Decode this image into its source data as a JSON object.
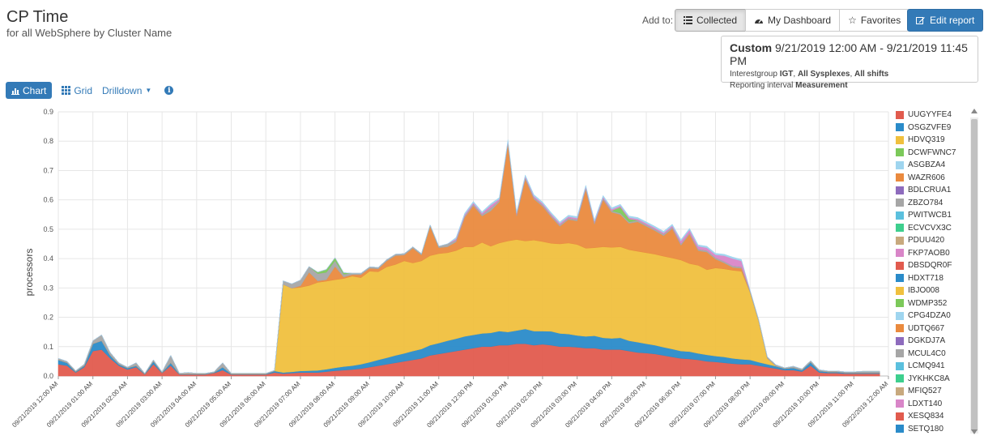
{
  "header": {
    "title": "CP Time",
    "subtitle": "for all WebSphere by Cluster Name"
  },
  "toolbar": {
    "add_to_label": "Add to:",
    "collected_label": "Collected",
    "dashboard_label": "My Dashboard",
    "favorites_label": "Favorites",
    "edit_label": "Edit report"
  },
  "info": {
    "range_kind": "Custom",
    "range_value": "9/21/2019 12:00 AM - 9/21/2019 11:45 PM",
    "interest_prefix": "Interestgroup",
    "interest_group": "IGT",
    "sysplexes": "All Sysplexes",
    "shifts": "All shifts",
    "interval_prefix": "Reporting interval",
    "interval": "Measurement"
  },
  "tabs": {
    "chart": "Chart",
    "grid": "Grid",
    "drilldown": "Drilldown"
  },
  "colors": {
    "accent": "#337ab7",
    "red": "#e15b4e",
    "blue": "#2a8bc9",
    "yellow": "#f0c03e",
    "orange": "#ea8a3e"
  },
  "chart_data": {
    "type": "area",
    "stacked": true,
    "ylabel": "processors",
    "ylim": [
      0,
      0.9
    ],
    "yticks": [
      0.0,
      0.1,
      0.2,
      0.3,
      0.4,
      0.5,
      0.6,
      0.7,
      0.8,
      0.9
    ],
    "grid": true,
    "legend_position": "right",
    "xtick_labels": [
      "09/21/2019 12:00 AM",
      "09/21/2019 01:00 AM",
      "09/21/2019 02:00 AM",
      "09/21/2019 03:00 AM",
      "09/21/2019 04:00 AM",
      "09/21/2019 05:00 AM",
      "09/21/2019 06:00 AM",
      "09/21/2019 07:00 AM",
      "09/21/2019 08:00 AM",
      "09/21/2019 09:00 AM",
      "09/21/2019 10:00 AM",
      "09/21/2019 11:00 AM",
      "09/21/2019 12:00 PM",
      "09/21/2019 01:00 PM",
      "09/21/2019 02:00 PM",
      "09/21/2019 03:00 PM",
      "09/21/2019 04:00 PM",
      "09/21/2019 05:00 PM",
      "09/21/2019 06:00 PM",
      "09/21/2019 07:00 PM",
      "09/21/2019 08:00 PM",
      "09/21/2019 09:00 PM",
      "09/21/2019 10:00 PM",
      "09/21/2019 11:00 PM",
      "09/22/2019 12:00 AM"
    ],
    "x_hours": [
      0,
      0.25,
      0.5,
      0.75,
      1,
      1.25,
      1.5,
      1.75,
      2,
      2.25,
      2.5,
      2.75,
      3,
      3.25,
      3.5,
      3.75,
      4,
      4.25,
      4.5,
      4.75,
      5,
      5.25,
      5.5,
      5.75,
      6,
      6.25,
      6.5,
      6.75,
      7,
      7.25,
      7.5,
      7.75,
      8,
      8.25,
      8.5,
      8.75,
      9,
      9.25,
      9.5,
      9.75,
      10,
      10.25,
      10.5,
      10.75,
      11,
      11.25,
      11.5,
      11.75,
      12,
      12.25,
      12.5,
      12.75,
      13,
      13.25,
      13.5,
      13.75,
      14,
      14.25,
      14.5,
      14.75,
      15,
      15.25,
      15.5,
      15.75,
      16,
      16.25,
      16.5,
      16.75,
      17,
      17.25,
      17.5,
      17.75,
      18,
      18.25,
      18.5,
      18.75,
      19,
      19.25,
      19.5,
      19.75,
      20,
      20.25,
      20.5,
      20.75,
      21,
      21.25,
      21.5,
      21.75,
      22,
      22.25,
      22.5,
      22.75,
      23,
      23.25,
      23.5,
      23.75
    ],
    "series": [
      {
        "name": "XESQ834",
        "color": "#e15b4e",
        "values": [
          0.04,
          0.035,
          0.012,
          0.03,
          0.085,
          0.09,
          0.06,
          0.035,
          0.022,
          0.03,
          0.005,
          0.04,
          0.01,
          0.035,
          0.005,
          0.005,
          0.005,
          0.005,
          0.01,
          0.02,
          0.005,
          0.005,
          0.005,
          0.005,
          0.005,
          0.012,
          0.008,
          0.01,
          0.012,
          0.012,
          0.012,
          0.015,
          0.018,
          0.02,
          0.022,
          0.025,
          0.03,
          0.035,
          0.04,
          0.045,
          0.05,
          0.055,
          0.06,
          0.07,
          0.075,
          0.08,
          0.085,
          0.09,
          0.095,
          0.1,
          0.1,
          0.105,
          0.105,
          0.11,
          0.11,
          0.105,
          0.108,
          0.105,
          0.1,
          0.1,
          0.098,
          0.095,
          0.095,
          0.09,
          0.09,
          0.09,
          0.085,
          0.08,
          0.078,
          0.075,
          0.07,
          0.065,
          0.06,
          0.058,
          0.055,
          0.05,
          0.048,
          0.045,
          0.042,
          0.04,
          0.04,
          0.035,
          0.03,
          0.025,
          0.02,
          0.02,
          0.015,
          0.035,
          0.012,
          0.01,
          0.01,
          0.008,
          0.008,
          0.008,
          0.008,
          0.008
        ]
      },
      {
        "name": "OSGZVFE9",
        "color": "#2a8bc9",
        "values": [
          0.015,
          0.01,
          0.003,
          0.005,
          0.025,
          0.03,
          0.01,
          0.005,
          0.005,
          0.005,
          0.002,
          0.01,
          0.002,
          0.01,
          0.002,
          0.002,
          0.002,
          0.002,
          0.002,
          0.01,
          0.002,
          0.002,
          0.002,
          0.002,
          0.002,
          0.005,
          0.004,
          0.004,
          0.005,
          0.006,
          0.007,
          0.008,
          0.01,
          0.012,
          0.013,
          0.015,
          0.017,
          0.02,
          0.022,
          0.025,
          0.027,
          0.03,
          0.032,
          0.035,
          0.037,
          0.04,
          0.042,
          0.045,
          0.045,
          0.045,
          0.047,
          0.048,
          0.045,
          0.045,
          0.05,
          0.048,
          0.045,
          0.047,
          0.045,
          0.043,
          0.04,
          0.04,
          0.042,
          0.04,
          0.038,
          0.04,
          0.035,
          0.035,
          0.032,
          0.03,
          0.028,
          0.027,
          0.025,
          0.025,
          0.022,
          0.022,
          0.02,
          0.02,
          0.018,
          0.017,
          0.015,
          0.012,
          0.01,
          0.008,
          0.005,
          0.008,
          0.005,
          0.012,
          0.005,
          0.004,
          0.004,
          0.003,
          0.003,
          0.003,
          0.003,
          0.003
        ]
      },
      {
        "name": "IBJO008",
        "color": "#f0c03e",
        "values": [
          0,
          0,
          0,
          0,
          0,
          0,
          0,
          0,
          0,
          0,
          0,
          0,
          0,
          0,
          0,
          0,
          0,
          0,
          0,
          0,
          0,
          0,
          0,
          0,
          0,
          0,
          0.3,
          0.285,
          0.285,
          0.29,
          0.3,
          0.3,
          0.3,
          0.3,
          0.305,
          0.295,
          0.31,
          0.3,
          0.31,
          0.31,
          0.315,
          0.3,
          0.3,
          0.305,
          0.305,
          0.3,
          0.3,
          0.305,
          0.3,
          0.31,
          0.295,
          0.3,
          0.31,
          0.31,
          0.3,
          0.31,
          0.305,
          0.3,
          0.305,
          0.31,
          0.31,
          0.3,
          0.3,
          0.31,
          0.31,
          0.31,
          0.31,
          0.31,
          0.31,
          0.31,
          0.31,
          0.31,
          0.31,
          0.3,
          0.3,
          0.29,
          0.3,
          0.3,
          0.3,
          0.3,
          0.23,
          0.14,
          0.02,
          0,
          0,
          0,
          0,
          0,
          0,
          0,
          0,
          0,
          0,
          0,
          0,
          0
        ]
      },
      {
        "name": "UDTQ667",
        "color": "#ea8a3e",
        "values": [
          0,
          0,
          0,
          0,
          0,
          0,
          0,
          0,
          0,
          0,
          0,
          0,
          0,
          0,
          0,
          0,
          0,
          0,
          0,
          0,
          0,
          0,
          0,
          0,
          0,
          0,
          0,
          0,
          0.005,
          0.045,
          0.005,
          0.005,
          0.045,
          0.005,
          0.005,
          0.01,
          0.01,
          0.01,
          0.02,
          0.03,
          0.02,
          0.05,
          0.02,
          0.1,
          0.02,
          0.02,
          0.03,
          0.1,
          0.14,
          0.09,
          0.12,
          0.14,
          0.33,
          0.08,
          0.21,
          0.14,
          0.12,
          0.09,
          0.06,
          0.08,
          0.08,
          0.2,
          0.08,
          0.16,
          0.12,
          0.11,
          0.09,
          0.1,
          0.09,
          0.08,
          0.07,
          0.1,
          0.05,
          0.1,
          0.05,
          0.06,
          0.03,
          0.02,
          0.01,
          0.01,
          0,
          0,
          0,
          0,
          0,
          0,
          0,
          0,
          0,
          0,
          0,
          0,
          0,
          0,
          0,
          0
        ]
      },
      {
        "name": "MCUL4C0",
        "color": "#a6a6a6",
        "values": [
          0.005,
          0.005,
          0.003,
          0.005,
          0.01,
          0.02,
          0.01,
          0.005,
          0.003,
          0.01,
          0.002,
          0.005,
          0.002,
          0.025,
          0.002,
          0.005,
          0.002,
          0.002,
          0.002,
          0.015,
          0.002,
          0.002,
          0.002,
          0.002,
          0.002,
          0.002,
          0.012,
          0.015,
          0.02,
          0.02,
          0.025,
          0.025,
          0.02,
          0.01,
          0.005,
          0.005,
          0.005,
          0.005,
          0.005,
          0.005,
          0.005,
          0.005,
          0.005,
          0.005,
          0.005,
          0.01,
          0.005,
          0.005,
          0.005,
          0.005,
          0.01,
          0.005,
          0.005,
          0.005,
          0.005,
          0.005,
          0.005,
          0.005,
          0.005,
          0.005,
          0.005,
          0.005,
          0.005,
          0.005,
          0.005,
          0.005,
          0.005,
          0.005,
          0.005,
          0.005,
          0.005,
          0.005,
          0.005,
          0.005,
          0.005,
          0.005,
          0.005,
          0.005,
          0.005,
          0.005,
          0.005,
          0.005,
          0.005,
          0.005,
          0.003,
          0.005,
          0.004,
          0.005,
          0.004,
          0.003,
          0.003,
          0.003,
          0.003,
          0.005,
          0.005,
          0.005
        ]
      },
      {
        "name": "WDMP352",
        "color": "#7cc95a",
        "values": [
          0,
          0,
          0,
          0,
          0,
          0,
          0,
          0,
          0,
          0,
          0,
          0,
          0,
          0,
          0,
          0,
          0,
          0,
          0,
          0,
          0,
          0,
          0,
          0,
          0,
          0,
          0,
          0,
          0,
          0,
          0.005,
          0.01,
          0.01,
          0.005,
          0,
          0,
          0,
          0,
          0,
          0,
          0,
          0,
          0,
          0,
          0,
          0,
          0,
          0,
          0,
          0,
          0,
          0,
          0,
          0,
          0,
          0,
          0,
          0,
          0,
          0,
          0,
          0,
          0,
          0,
          0,
          0.02,
          0.01,
          0,
          0,
          0,
          0,
          0,
          0,
          0,
          0,
          0,
          0,
          0,
          0,
          0,
          0,
          0,
          0,
          0,
          0,
          0,
          0,
          0,
          0,
          0,
          0,
          0,
          0,
          0,
          0,
          0
        ]
      },
      {
        "name": "LDXT140",
        "color": "#d986c8",
        "values": [
          0,
          0,
          0,
          0,
          0,
          0,
          0,
          0,
          0,
          0,
          0,
          0,
          0,
          0,
          0,
          0,
          0,
          0,
          0,
          0,
          0,
          0,
          0,
          0,
          0,
          0,
          0,
          0,
          0,
          0,
          0,
          0,
          0,
          0,
          0,
          0,
          0,
          0,
          0,
          0,
          0,
          0,
          0,
          0,
          0,
          0,
          0.005,
          0.005,
          0.005,
          0.005,
          0.01,
          0.005,
          0.005,
          0.005,
          0.005,
          0.005,
          0.005,
          0.005,
          0.005,
          0.005,
          0.005,
          0.005,
          0.005,
          0.005,
          0.005,
          0.005,
          0.005,
          0.005,
          0.005,
          0.005,
          0.005,
          0.005,
          0.01,
          0.01,
          0.01,
          0.01,
          0.01,
          0.02,
          0.025,
          0.02,
          0.002,
          0,
          0,
          0,
          0,
          0,
          0,
          0,
          0,
          0,
          0,
          0,
          0,
          0,
          0,
          0
        ]
      },
      {
        "name": "CPG4DZA0",
        "color": "#9fd5ef",
        "values": [
          0,
          0,
          0,
          0,
          0,
          0,
          0,
          0,
          0,
          0,
          0,
          0,
          0,
          0,
          0,
          0,
          0,
          0,
          0,
          0,
          0,
          0,
          0,
          0,
          0,
          0,
          0,
          0,
          0,
          0,
          0,
          0,
          0,
          0,
          0,
          0,
          0,
          0,
          0,
          0,
          0,
          0,
          0,
          0,
          0,
          0,
          0.005,
          0.005,
          0.005,
          0.005,
          0.005,
          0.005,
          0.005,
          0.005,
          0.005,
          0.005,
          0.005,
          0.005,
          0.005,
          0.005,
          0.005,
          0.005,
          0.005,
          0.005,
          0.005,
          0.005,
          0.005,
          0.005,
          0.005,
          0.005,
          0.005,
          0.005,
          0.005,
          0.005,
          0.005,
          0.005,
          0.005,
          0.005,
          0.005,
          0.005,
          0,
          0,
          0,
          0,
          0,
          0,
          0,
          0,
          0,
          0,
          0,
          0,
          0,
          0,
          0,
          0
        ]
      }
    ]
  },
  "legend": [
    {
      "name": "UUGYYFE4",
      "color": "#e15b4e"
    },
    {
      "name": "OSGZVFE9",
      "color": "#2a8bc9"
    },
    {
      "name": "HDVQ319",
      "color": "#f0c03e"
    },
    {
      "name": "DCWFWNC7",
      "color": "#7cc95a"
    },
    {
      "name": "ASGBZA4",
      "color": "#9fd5ef"
    },
    {
      "name": "WAZR606",
      "color": "#ea8a3e"
    },
    {
      "name": "BDLCRUA1",
      "color": "#8e6bbd"
    },
    {
      "name": "ZBZO784",
      "color": "#a6a6a6"
    },
    {
      "name": "PWITWCB1",
      "color": "#5bc0de"
    },
    {
      "name": "ECVCVX3C",
      "color": "#3ecf8e"
    },
    {
      "name": "PDUU420",
      "color": "#c8a97e"
    },
    {
      "name": "FKP7AOB0",
      "color": "#d986c8"
    },
    {
      "name": "DBSDQR0F",
      "color": "#e15b4e"
    },
    {
      "name": "HDXT718",
      "color": "#2a8bc9"
    },
    {
      "name": "IBJO008",
      "color": "#f0c03e"
    },
    {
      "name": "WDMP352",
      "color": "#7cc95a"
    },
    {
      "name": "CPG4DZA0",
      "color": "#9fd5ef"
    },
    {
      "name": "UDTQ667",
      "color": "#ea8a3e"
    },
    {
      "name": "DGKDJ7A",
      "color": "#8e6bbd"
    },
    {
      "name": "MCUL4C0",
      "color": "#a6a6a6"
    },
    {
      "name": "LCMQ941",
      "color": "#5bc0de"
    },
    {
      "name": "JYKHKC8A",
      "color": "#3ecf8e"
    },
    {
      "name": "MFIQ527",
      "color": "#c8a97e"
    },
    {
      "name": "LDXT140",
      "color": "#d986c8"
    },
    {
      "name": "XESQ834",
      "color": "#e15b4e"
    },
    {
      "name": "SETQ180",
      "color": "#2a8bc9"
    }
  ]
}
